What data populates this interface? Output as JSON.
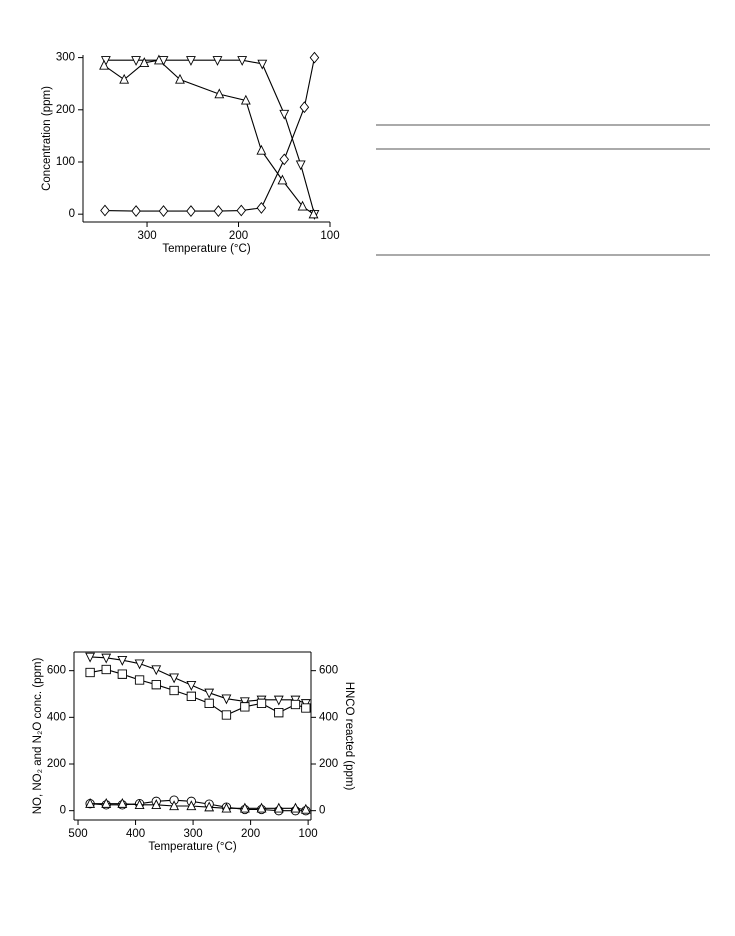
{
  "chart_data": [
    {
      "type": "line",
      "xlabel": "Temperature (°C)",
      "ylabel": "Concentration (ppm)",
      "xlim": [
        370,
        100
      ],
      "ylim": [
        -15,
        305
      ],
      "xticks": [
        300,
        200,
        100
      ],
      "yticks": [
        0,
        100,
        200,
        300
      ],
      "series": [
        {
          "marker": "triangle-down",
          "color": "#000000",
          "x": [
            345,
            312,
            282,
            252,
            223,
            196,
            174,
            150,
            132,
            117
          ],
          "values": [
            295,
            295,
            295,
            295,
            295,
            295,
            288,
            192,
            95,
            0
          ]
        },
        {
          "marker": "triangle-up",
          "color": "#000000",
          "x": [
            347,
            325,
            303,
            287,
            264,
            221,
            192,
            175,
            152,
            130,
            118
          ],
          "values": [
            285,
            258,
            290,
            295,
            258,
            230,
            218,
            122,
            65,
            15,
            0
          ]
        },
        {
          "marker": "diamond",
          "color": "#000000",
          "x": [
            346,
            312,
            282,
            252,
            222,
            197,
            175,
            150,
            128,
            117
          ],
          "values": [
            7,
            6,
            6,
            6,
            6,
            7,
            12,
            105,
            205,
            300
          ]
        }
      ]
    },
    {
      "type": "line",
      "xlabel": "Temperature (°C)",
      "ylabel": "NO, NO₂ and N₂O conc. (ppm)",
      "y2label": "HNCO reacted (ppm)",
      "xlim": [
        507,
        95
      ],
      "ylim": [
        -40,
        680
      ],
      "y2lim": [
        -40,
        680
      ],
      "xticks": [
        500,
        400,
        300,
        200,
        100
      ],
      "yticks": [
        0,
        200,
        400,
        600
      ],
      "y2ticks": [
        0,
        200,
        400,
        600
      ],
      "series": [
        {
          "marker": "triangle-down",
          "color": "#000000",
          "axis": "y2",
          "x": [
            479,
            451,
            423,
            393,
            364,
            333,
            303,
            272,
            242,
            210,
            181,
            151,
            122,
            104
          ],
          "values": [
            659,
            655,
            645,
            630,
            605,
            570,
            538,
            505,
            480,
            468,
            475,
            475,
            475,
            460
          ]
        },
        {
          "marker": "square",
          "color": "#000000",
          "x": [
            479,
            451,
            423,
            393,
            364,
            333,
            303,
            272,
            242,
            210,
            181,
            151,
            122,
            104
          ],
          "values": [
            592,
            605,
            585,
            560,
            540,
            515,
            490,
            460,
            410,
            445,
            460,
            420,
            455,
            440
          ]
        },
        {
          "marker": "circle",
          "color": "#000000",
          "x": [
            479,
            451,
            423,
            393,
            364,
            333,
            303,
            272,
            242,
            210,
            181,
            151,
            122,
            104
          ],
          "values": [
            30,
            25,
            25,
            30,
            40,
            45,
            40,
            28,
            15,
            5,
            5,
            0,
            0,
            0
          ]
        },
        {
          "marker": "triangle-up",
          "color": "#000000",
          "x": [
            479,
            451,
            423,
            393,
            364,
            333,
            303,
            272,
            242,
            210,
            181,
            151,
            122,
            104
          ],
          "values": [
            30,
            30,
            30,
            25,
            25,
            20,
            20,
            15,
            10,
            10,
            10,
            10,
            10,
            5
          ]
        }
      ]
    }
  ]
}
